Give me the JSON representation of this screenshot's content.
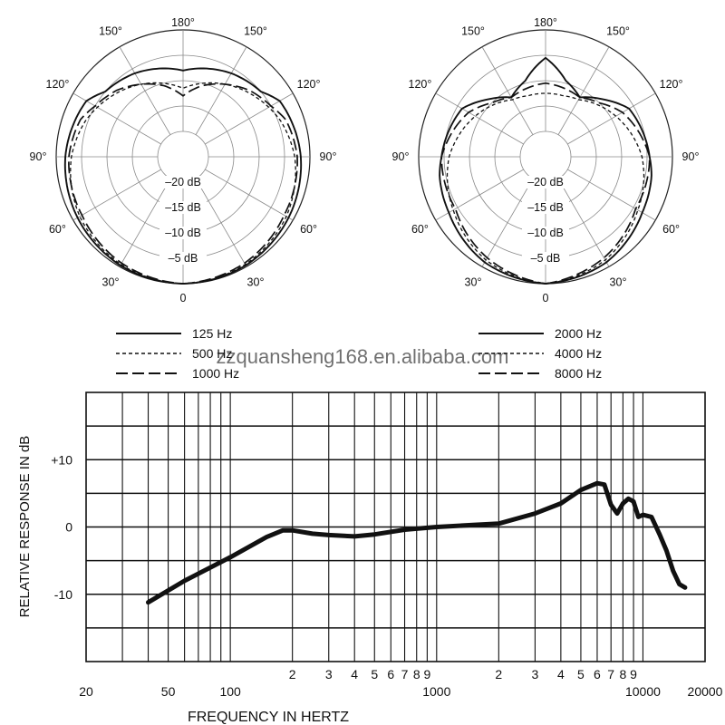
{
  "chart_data": [
    {
      "type": "polar",
      "angle_labels": [
        "180°",
        "150°",
        "150°",
        "120°",
        "120°",
        "90°",
        "90°",
        "60°",
        "60°",
        "30°",
        "30°",
        "0"
      ],
      "radial_labels": [
        "–20 dB",
        "–15 dB",
        "–10 dB",
        "–5 dB"
      ],
      "rlim": [
        -25,
        0
      ],
      "series": [
        {
          "name": "125 Hz",
          "style": "solid",
          "angles": [
            0,
            30,
            60,
            90,
            110,
            120,
            130,
            150,
            165,
            180,
            195,
            210,
            230,
            240,
            250,
            270,
            300,
            330,
            360
          ],
          "values": [
            0,
            -0.3,
            -1,
            -1.8,
            -2.6,
            -3,
            -5,
            -6,
            -7,
            -8,
            -7,
            -6,
            -5,
            -3,
            -2.6,
            -1.8,
            -1,
            -0.3,
            0
          ]
        },
        {
          "name": "500 Hz",
          "style": "dotted",
          "angles": [
            0,
            30,
            60,
            90,
            110,
            120,
            135,
            150,
            165,
            180,
            195,
            210,
            225,
            240,
            250,
            270,
            300,
            330,
            360
          ],
          "values": [
            0,
            -0.5,
            -1.5,
            -3,
            -4.5,
            -5.5,
            -7,
            -8.5,
            -10,
            -11.5,
            -10,
            -8.5,
            -7,
            -5.5,
            -4.5,
            -3,
            -1.5,
            -0.5,
            0
          ]
        },
        {
          "name": "1000 Hz",
          "style": "dashed",
          "angles": [
            0,
            30,
            60,
            90,
            110,
            120,
            135,
            150,
            165,
            180,
            195,
            210,
            225,
            240,
            250,
            270,
            300,
            330,
            360
          ],
          "values": [
            0,
            -0.8,
            -2,
            -2.5,
            -3.5,
            -5,
            -6.5,
            -8.5,
            -10.5,
            -13,
            -10.5,
            -8.5,
            -6.5,
            -5,
            -3.5,
            -2.5,
            -2,
            -0.8,
            0
          ]
        }
      ],
      "legend": [
        "125 Hz",
        "500 Hz",
        "1000 Hz"
      ]
    },
    {
      "type": "polar",
      "angle_labels": [
        "180°",
        "150°",
        "150°",
        "120°",
        "120°",
        "90°",
        "90°",
        "60°",
        "60°",
        "30°",
        "30°",
        "0"
      ],
      "radial_labels": [
        "–20 dB",
        "–15 dB",
        "–10 dB",
        "–5 dB"
      ],
      "rlim": [
        -25,
        0
      ],
      "series": [
        {
          "name": "2000 Hz",
          "style": "solid",
          "angles": [
            0,
            30,
            60,
            80,
            90,
            100,
            120,
            135,
            150,
            165,
            180,
            195,
            210,
            225,
            240,
            260,
            270,
            280,
            300,
            330,
            360
          ],
          "values": [
            0,
            -1,
            -3,
            -3.8,
            -4.5,
            -5,
            -6,
            -9,
            -11.5,
            -9.5,
            -5.5,
            -9.5,
            -11.5,
            -9,
            -6,
            -5,
            -4.5,
            -3.8,
            -3,
            -1,
            0
          ]
        },
        {
          "name": "4000 Hz",
          "style": "dotted",
          "angles": [
            0,
            30,
            60,
            90,
            120,
            135,
            150,
            165,
            180,
            195,
            210,
            225,
            240,
            270,
            300,
            330,
            360
          ],
          "values": [
            0,
            -1.5,
            -4,
            -6,
            -9,
            -10.5,
            -12,
            -12.5,
            -12.5,
            -12.5,
            -12,
            -10.5,
            -9,
            -6,
            -4,
            -1.5,
            0
          ]
        },
        {
          "name": "8000 Hz",
          "style": "dashed",
          "angles": [
            0,
            30,
            60,
            90,
            120,
            135,
            150,
            165,
            180,
            195,
            210,
            225,
            240,
            270,
            300,
            330,
            360
          ],
          "values": [
            0,
            -2,
            -4.5,
            -4.5,
            -7.5,
            -10,
            -11.5,
            -11,
            -10.5,
            -11,
            -11.5,
            -10,
            -7.5,
            -4.5,
            -4.5,
            -2,
            0
          ]
        }
      ],
      "legend": [
        "2000 Hz",
        "4000 Hz",
        "8000 Hz"
      ]
    },
    {
      "type": "line",
      "xlabel": "FREQUENCY IN HERTZ",
      "ylabel": "RELATIVE RESPONSE IN dB",
      "xscale": "log",
      "xlim": [
        20,
        20000
      ],
      "ylim": [
        -20,
        20
      ],
      "grid": true,
      "x_tick_labels": [
        {
          "value": 20,
          "label": "20"
        },
        {
          "value": 50,
          "label": "50"
        },
        {
          "value": 100,
          "label": "100"
        },
        {
          "value": 200,
          "label": "2"
        },
        {
          "value": 300,
          "label": "3"
        },
        {
          "value": 400,
          "label": "4"
        },
        {
          "value": 500,
          "label": "5"
        },
        {
          "value": 600,
          "label": "6"
        },
        {
          "value": 700,
          "label": "7"
        },
        {
          "value": 800,
          "label": "8"
        },
        {
          "value": 900,
          "label": "9"
        },
        {
          "value": 1000,
          "label": "1000"
        },
        {
          "value": 2000,
          "label": "2"
        },
        {
          "value": 3000,
          "label": "3"
        },
        {
          "value": 4000,
          "label": "4"
        },
        {
          "value": 5000,
          "label": "5"
        },
        {
          "value": 6000,
          "label": "6"
        },
        {
          "value": 7000,
          "label": "7"
        },
        {
          "value": 8000,
          "label": "8"
        },
        {
          "value": 9000,
          "label": "9"
        },
        {
          "value": 10000,
          "label": "10000"
        },
        {
          "value": 20000,
          "label": "20000"
        }
      ],
      "y_tick_labels": [
        {
          "value": 10,
          "label": "+10"
        },
        {
          "value": 0,
          "label": "0"
        },
        {
          "value": -10,
          "label": "-10"
        }
      ],
      "series": [
        {
          "x": [
            40,
            60,
            100,
            150,
            180,
            200,
            250,
            300,
            400,
            500,
            700,
            1000,
            1500,
            2000,
            3000,
            4000,
            5000,
            6000,
            6500,
            7000,
            7500,
            8000,
            8500,
            9000,
            9500,
            10000,
            11000,
            12000,
            13000,
            14000,
            15000,
            16000
          ],
          "y": [
            -11.2,
            -8,
            -4.5,
            -1.5,
            -0.5,
            -0.5,
            -1,
            -1.2,
            -1.4,
            -1.1,
            -0.4,
            0,
            0.3,
            0.5,
            2,
            3.5,
            5.5,
            6.5,
            6.3,
            3.3,
            2,
            3.5,
            4.2,
            3.8,
            1.5,
            1.8,
            1.5,
            -1,
            -3.5,
            -6.5,
            -8.5,
            -9
          ]
        }
      ]
    }
  ],
  "watermark": "zzquansheng168.en.alibaba.com"
}
